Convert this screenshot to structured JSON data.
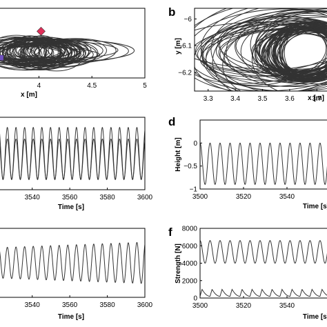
{
  "figure": {
    "panel_labels": [
      "b",
      "d",
      "f"
    ]
  },
  "chart_data": [
    {
      "id": "a",
      "type": "line",
      "xlabel": "x [m]",
      "ylabel": "",
      "xlim": [
        3.6,
        5.0
      ],
      "x_ticks": [
        4,
        4.5,
        5
      ],
      "x_tick_labels": [
        "4",
        "4.5",
        "5"
      ],
      "markers": [
        {
          "shape": "diamond",
          "color": "#e0305a",
          "x": 4.02,
          "y_fraction": 0.67
        },
        {
          "shape": "square",
          "color": "#7050c0",
          "x": 3.64,
          "y_fraction": 0.29
        }
      ],
      "colors": {
        "trace": "#333333",
        "marker_diamond": "#e0305a",
        "marker_square": "#7050c0"
      }
    },
    {
      "id": "b",
      "type": "line",
      "xlabel": "x [m]",
      "ylabel": "y [m]",
      "xlim": [
        3.25,
        3.75
      ],
      "ylim": [
        -6.27,
        -5.96
      ],
      "x_ticks": [
        3.3,
        3.4,
        3.5,
        3.6,
        3.7
      ],
      "x_tick_labels": [
        "3.3",
        "3.4",
        "3.5",
        "3.6",
        "3.7"
      ],
      "y_ticks": [
        -6,
        -6.1,
        -6.2
      ],
      "y_tick_labels": [
        "−6",
        "−6.1",
        "−6.2"
      ]
    },
    {
      "id": "c",
      "type": "line",
      "xlabel": "Time [s]",
      "xlim": [
        3521,
        3600
      ],
      "x_ticks": [
        3540,
        3560,
        3580,
        3600
      ],
      "x_tick_labels": [
        "3540",
        "3560",
        "3580",
        "3600"
      ],
      "series": [
        {
          "period_s": 4.6,
          "amplitude_fraction": 0.36,
          "center_fraction": 0.5
        },
        {
          "period_s": 4.6,
          "amplitude_fraction": 0.28,
          "center_fraction": 0.42
        }
      ]
    },
    {
      "id": "d",
      "type": "line",
      "xlabel": "Time [s]",
      "ylabel": "Height [m]",
      "xlim": [
        3500,
        3560
      ],
      "ylim": [
        -1,
        0.5
      ],
      "x_ticks": [
        3500,
        3520,
        3540
      ],
      "x_tick_labels": [
        "3500",
        "3520",
        "3540"
      ],
      "y_ticks": [
        0,
        -0.5,
        -1
      ],
      "y_tick_labels": [
        "0",
        "−0.5",
        "−1"
      ],
      "series": [
        {
          "period_s": 4.6,
          "min": -0.9,
          "max": 0.0
        }
      ]
    },
    {
      "id": "e",
      "type": "line",
      "xlabel": "Time [s]",
      "xlim": [
        3521,
        3600
      ],
      "x_ticks": [
        3540,
        3560,
        3580,
        3600
      ],
      "x_tick_labels": [
        "3540",
        "3560",
        "3580",
        "3600"
      ],
      "series": [
        {
          "period_s": 4.6,
          "amplitude_fraction_start": 0.22,
          "amplitude_fraction_end": 0.3
        }
      ]
    },
    {
      "id": "f",
      "type": "line",
      "xlabel": "Time [s]",
      "ylabel": "Strength [N]",
      "xlim": [
        3500,
        3560
      ],
      "ylim": [
        0,
        8000
      ],
      "x_ticks": [
        3500,
        3520,
        3540
      ],
      "x_tick_labels": [
        "3500",
        "3520",
        "3540"
      ],
      "y_ticks": [
        0,
        2000,
        4000,
        6000,
        8000
      ],
      "y_tick_labels": [
        "0",
        "2000",
        "4000",
        "6000",
        "8000"
      ],
      "series": [
        {
          "period_s": 4.6,
          "min": 4000,
          "max": 6600
        },
        {
          "period_s": 4.6,
          "min": 200,
          "max": 1000
        }
      ]
    }
  ]
}
